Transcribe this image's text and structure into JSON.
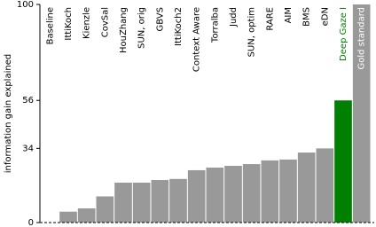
{
  "chart_data": {
    "type": "bar",
    "ylabel": "information gain explained",
    "categories": [
      "Baseline",
      "IttiKoch",
      "Kienzle",
      "CovSal",
      "HouZhang",
      "SUN, orig",
      "GBVS",
      "IttiKoch2",
      "Context Aware",
      "Torralba",
      "Judd",
      "SUN, optim",
      "RARE",
      "AIM",
      "BMS",
      "eDN",
      "Deep Gaze I",
      "Gold standard"
    ],
    "values": [
      0,
      5,
      6.5,
      12,
      18.3,
      18.3,
      19.5,
      20,
      24,
      25.2,
      26,
      26.8,
      28.5,
      28.9,
      32.1,
      34,
      56,
      100
    ],
    "colors": [
      "#999999",
      "#999999",
      "#999999",
      "#999999",
      "#999999",
      "#999999",
      "#999999",
      "#999999",
      "#999999",
      "#999999",
      "#999999",
      "#999999",
      "#999999",
      "#999999",
      "#999999",
      "#999999",
      "#008000",
      "#999999"
    ],
    "label_colors": [
      "#000000",
      "#000000",
      "#000000",
      "#000000",
      "#000000",
      "#000000",
      "#000000",
      "#000000",
      "#000000",
      "#000000",
      "#000000",
      "#000000",
      "#000000",
      "#000000",
      "#000000",
      "#000000",
      "#008000",
      "#ffffff"
    ],
    "ylim": [
      0,
      100
    ],
    "yticks": [
      0,
      34,
      56,
      100
    ],
    "grid": false
  }
}
